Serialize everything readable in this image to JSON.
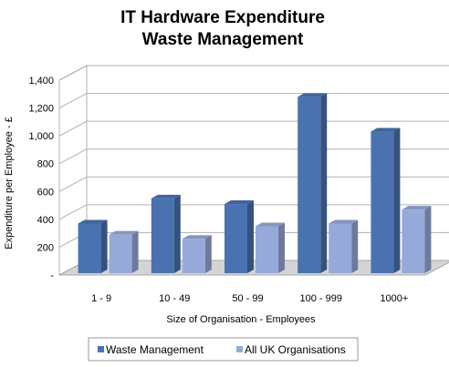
{
  "chart_data": {
    "type": "bar",
    "title": [
      "IT Hardware Expenditure",
      "Waste Management"
    ],
    "xlabel": "Size of Organisation - Employees",
    "ylabel": "Expenditure per Employee - £",
    "categories": [
      "1 - 9",
      "10 - 49",
      "50 - 99",
      "100 - 999",
      "1000+"
    ],
    "series": [
      {
        "name": "Waste Management",
        "values": [
          370,
          550,
          510,
          1280,
          1030
        ],
        "color": "#4a72b0"
      },
      {
        "name": "All UK Organisations",
        "values": [
          290,
          260,
          350,
          370,
          470
        ],
        "color": "#97a9d8"
      }
    ],
    "ylim": [
      0,
      1400
    ],
    "yticks": [
      0,
      200,
      400,
      600,
      800,
      1000,
      1200,
      1400
    ],
    "ytick_labels": [
      "-",
      "200",
      "400",
      "600",
      "800",
      "1,000",
      "1,200",
      "1,400"
    ],
    "grid": true,
    "legend_position": "bottom"
  }
}
